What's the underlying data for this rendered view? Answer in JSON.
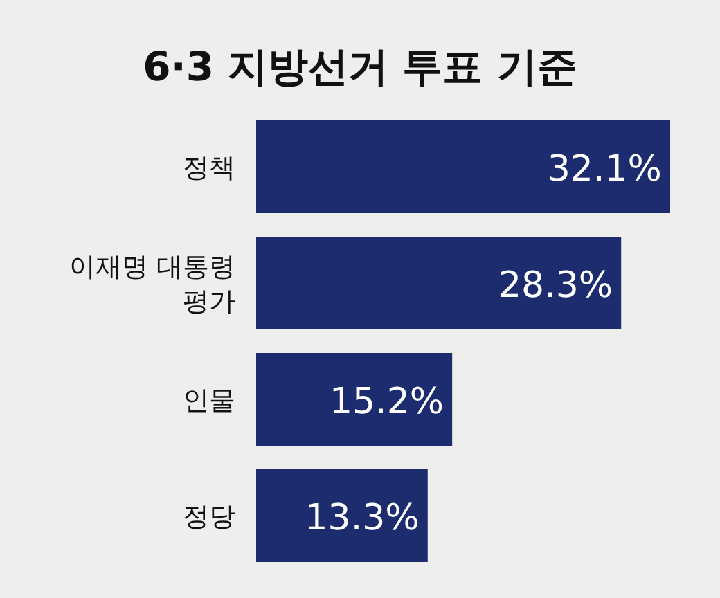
{
  "chart_data": {
    "type": "bar",
    "orientation": "horizontal",
    "title": "6·3 지방선거 투표 기준",
    "categories": [
      "정책",
      "이재명 대통령 평가",
      "인물",
      "정당"
    ],
    "values": [
      32.1,
      28.3,
      15.2,
      13.3
    ],
    "value_labels": [
      "32.1%",
      "28.3%",
      "15.2%",
      "13.3%"
    ],
    "color": "#1c2c6e"
  }
}
